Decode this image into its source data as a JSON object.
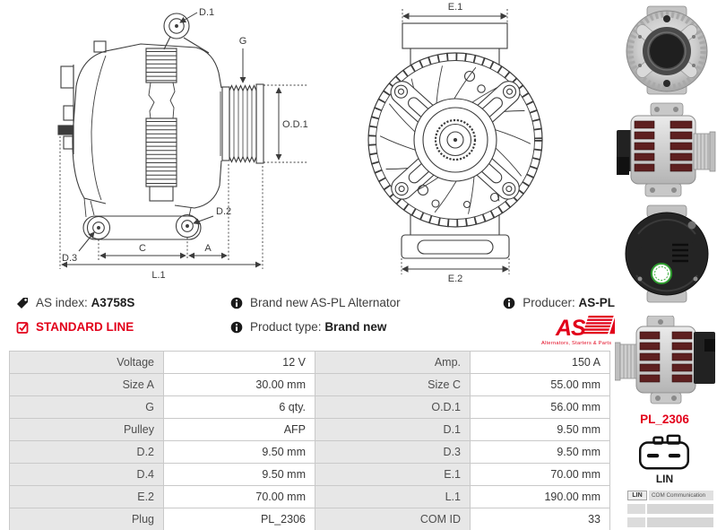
{
  "side_drawing": {
    "d1": "D.1",
    "g": "G",
    "od1": "O.D.1",
    "d2": "D.2",
    "d3": "D.3",
    "c": "C",
    "a": "A",
    "l1": "L.1"
  },
  "front_drawing": {
    "e1": "E.1",
    "e2": "E.2"
  },
  "info": {
    "as_index_label": "AS index:",
    "as_index_value": "A3758S",
    "standard_line": "STANDARD LINE",
    "brand_new": "Brand new AS-PL Alternator",
    "product_type_label": "Product type:",
    "product_type_value": "Brand new",
    "producer_label": "Producer:",
    "producer_value": "AS-PL",
    "logo_text": "AS",
    "logo_tagline": "Alternators, Starters & Parts"
  },
  "sidebar": {
    "photo_names": [
      "alternator-front-view-photo",
      "alternator-side-view-pulley-right-photo",
      "alternator-rear-view-photo",
      "alternator-side-view-pulley-left-photo"
    ],
    "plug_code": "PL_2306",
    "plug_family": "LIN",
    "com_rows": [
      {
        "key": "LIN",
        "value": "COM Communication"
      }
    ]
  },
  "spec_table": {
    "rows": [
      {
        "c0": "Voltage",
        "c1": "12 V",
        "c2": "Amp.",
        "c3": "150 A"
      },
      {
        "c0": "Size A",
        "c1": "30.00 mm",
        "c2": "Size C",
        "c3": "55.00 mm"
      },
      {
        "c0": "G",
        "c1": "6 qty.",
        "c2": "O.D.1",
        "c3": "56.00 mm"
      },
      {
        "c0": "Pulley",
        "c1": "AFP",
        "c2": "D.1",
        "c3": "9.50 mm"
      },
      {
        "c0": "D.2",
        "c1": "9.50 mm",
        "c2": "D.3",
        "c3": "9.50 mm"
      },
      {
        "c0": "D.4",
        "c1": "9.50 mm",
        "c2": "E.1",
        "c3": "70.00 mm"
      },
      {
        "c0": "E.2",
        "c1": "70.00 mm",
        "c2": "L.1",
        "c3": "190.00 mm"
      },
      {
        "c0": "Plug",
        "c1": "PL_2306",
        "c2": "COM ID",
        "c3": "33"
      }
    ]
  },
  "colors": {
    "accent_red": "#e2001a",
    "drawing_stroke": "#3c3c3c",
    "label_cell_bg": "#e7e7e7",
    "table_border": "#c9c9c9"
  }
}
